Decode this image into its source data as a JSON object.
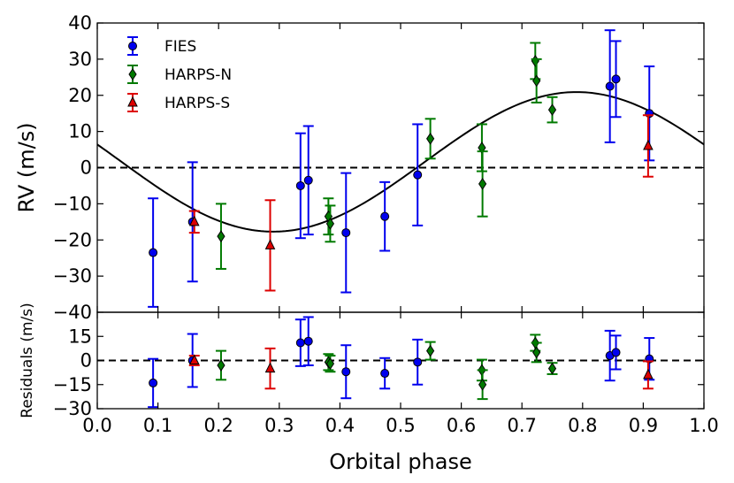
{
  "chart_data": {
    "type": "scatter",
    "title": "",
    "xlabel": "Orbital phase",
    "xlim": [
      0.0,
      1.0
    ],
    "xticks": [
      "0.0",
      "0.1",
      "0.2",
      "0.3",
      "0.4",
      "0.5",
      "0.6",
      "0.7",
      "0.8",
      "0.9",
      "1.0"
    ],
    "top_panel": {
      "ylabel": "RV (m/s)",
      "ylim": [
        -40,
        40
      ],
      "yticks": [
        "−40",
        "−30",
        "−20",
        "−10",
        "0",
        "10",
        "20",
        "30",
        "40"
      ]
    },
    "bottom_panel": {
      "ylabel": "Residuals (m/s)",
      "ylim": [
        -30,
        30
      ],
      "yticks": [
        "−30",
        "−15",
        "0",
        "15"
      ]
    },
    "model": {
      "amplitude": 19.3,
      "phase_of_max": 0.79,
      "offset": 1.6,
      "color": "#000000"
    },
    "series": [
      {
        "name": "FIES",
        "marker": "circle",
        "color": "#0000ee",
        "phase": [
          0.092,
          0.157,
          0.335,
          0.348,
          0.41,
          0.474,
          0.528,
          0.845,
          0.855,
          0.91
        ],
        "rv": [
          -23.5,
          -15.0,
          -5.0,
          -3.5,
          -18.0,
          -13.5,
          -2.0,
          22.5,
          24.5,
          15.0
        ],
        "rv_err": [
          15,
          16.5,
          14.5,
          15,
          16.5,
          9.5,
          14,
          15.5,
          10.5,
          13
        ],
        "resid": [
          -14,
          0,
          11,
          12,
          -7,
          -8,
          -1,
          3,
          5,
          1
        ],
        "resid_err": [
          15,
          16.5,
          14.5,
          15,
          16.5,
          9.5,
          14,
          15.5,
          10.5,
          13
        ]
      },
      {
        "name": "HARPS-N",
        "marker": "diamond",
        "color": "#007a00",
        "phase": [
          0.204,
          0.381,
          0.384,
          0.549,
          0.634,
          0.635,
          0.722,
          0.724,
          0.75
        ],
        "rv": [
          -19.0,
          -13.5,
          -15.5,
          8.0,
          5.5,
          -4.5,
          29.5,
          24.0,
          16.0
        ],
        "rv_err": [
          9,
          5,
          5,
          5.5,
          6.5,
          9,
          5,
          6,
          3.5
        ],
        "resid": [
          -3,
          -1,
          -2,
          6,
          -6,
          -15,
          11,
          5,
          -5
        ],
        "resid_err": [
          9,
          5,
          5,
          5.5,
          6.5,
          9,
          5,
          6,
          3.5
        ]
      },
      {
        "name": "HARPS-S",
        "marker": "triangle",
        "color": "#dd0000",
        "phase": [
          0.16,
          0.285,
          0.908
        ],
        "rv": [
          -15.0,
          -21.5,
          6.0
        ],
        "rv_err": [
          3,
          12.5,
          8.5
        ],
        "resid": [
          0,
          -5,
          -9
        ],
        "resid_err": [
          3,
          12.5,
          8.5
        ]
      }
    ],
    "legend_position": "top-left"
  }
}
